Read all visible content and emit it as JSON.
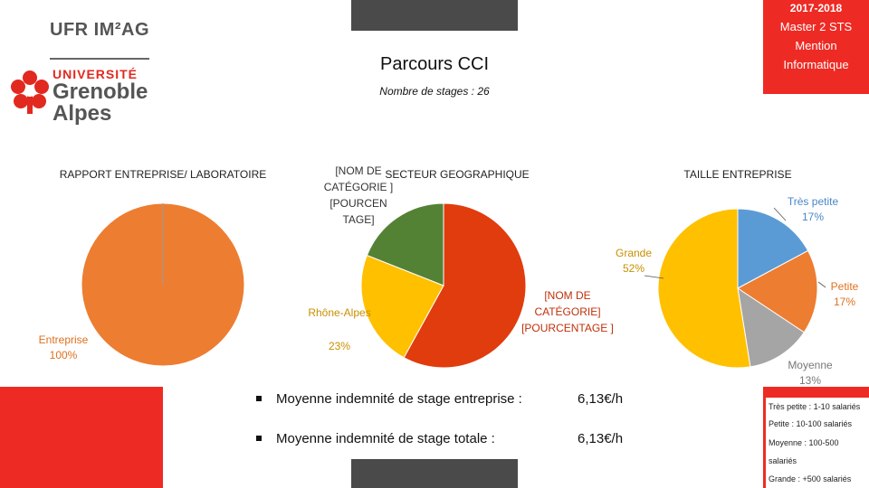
{
  "header": {
    "faculty_logo": "UFR IM²AG",
    "university_logo": [
      "UNIVERSITÉ",
      "Grenoble",
      "Alpes"
    ],
    "title": "Parcours CCI",
    "subtitle": "Nombre de stages : 26",
    "year_box": [
      "2017-2018",
      "Master 2 STS",
      "Mention",
      "Informatique"
    ]
  },
  "colors": {
    "orange": "#ed7d31",
    "red": "#ee2a24",
    "dark_orange_red": "#e03c0e",
    "green": "#548235",
    "yellow": "#ffc000",
    "blue": "#5b9bd5",
    "gray": "#a5a5a5",
    "dark": "#4a4a4a"
  },
  "chart_data": [
    {
      "type": "pie",
      "title": "RAPPORT ENTREPRISE/ LABORATOIRE",
      "slices": [
        {
          "label": "Entreprise",
          "value": 100,
          "label_text": "Entreprise",
          "value_text": "100%"
        }
      ]
    },
    {
      "type": "pie",
      "title": "SECTEUR GEOGRAPHIQUE",
      "slices": [
        {
          "label": "[NOM DE CATÉGORIE]",
          "value": 58,
          "label_text": "[NOM DE CATÉGORIE] [POURCENTAGE ]"
        },
        {
          "label": "Rhône-Alpes",
          "value": 23,
          "label_text": "Rhône-Alpes",
          "value_text": "23%"
        },
        {
          "label": "[NOM DE CATÉGORIE]",
          "value": 19,
          "label_text": "[NOM DE CATÉGORIE ] [POURCEN TAGE]"
        }
      ]
    },
    {
      "type": "pie",
      "title": "TAILLE ENTREPRISE",
      "slices": [
        {
          "label": "Très petite",
          "value": 17,
          "value_text": "17%"
        },
        {
          "label": "Petite",
          "value": 17,
          "value_text": "17%"
        },
        {
          "label": "Moyenne",
          "value": 13,
          "value_text": "13%"
        },
        {
          "label": "Grande",
          "value": 52,
          "value_text": "52%"
        }
      ]
    }
  ],
  "stats": [
    {
      "label": "Moyenne indemnité de stage entreprise :",
      "value": "6,13€/h"
    },
    {
      "label": "Moyenne indemnité de stage totale :",
      "value": "6,13€/h"
    }
  ],
  "size_legend": [
    "Très petite : 1-10 salariés",
    "Petite : 10-100 salariés",
    "Moyenne : 100-500",
    "salariés",
    "Grande : +500 salariés"
  ]
}
